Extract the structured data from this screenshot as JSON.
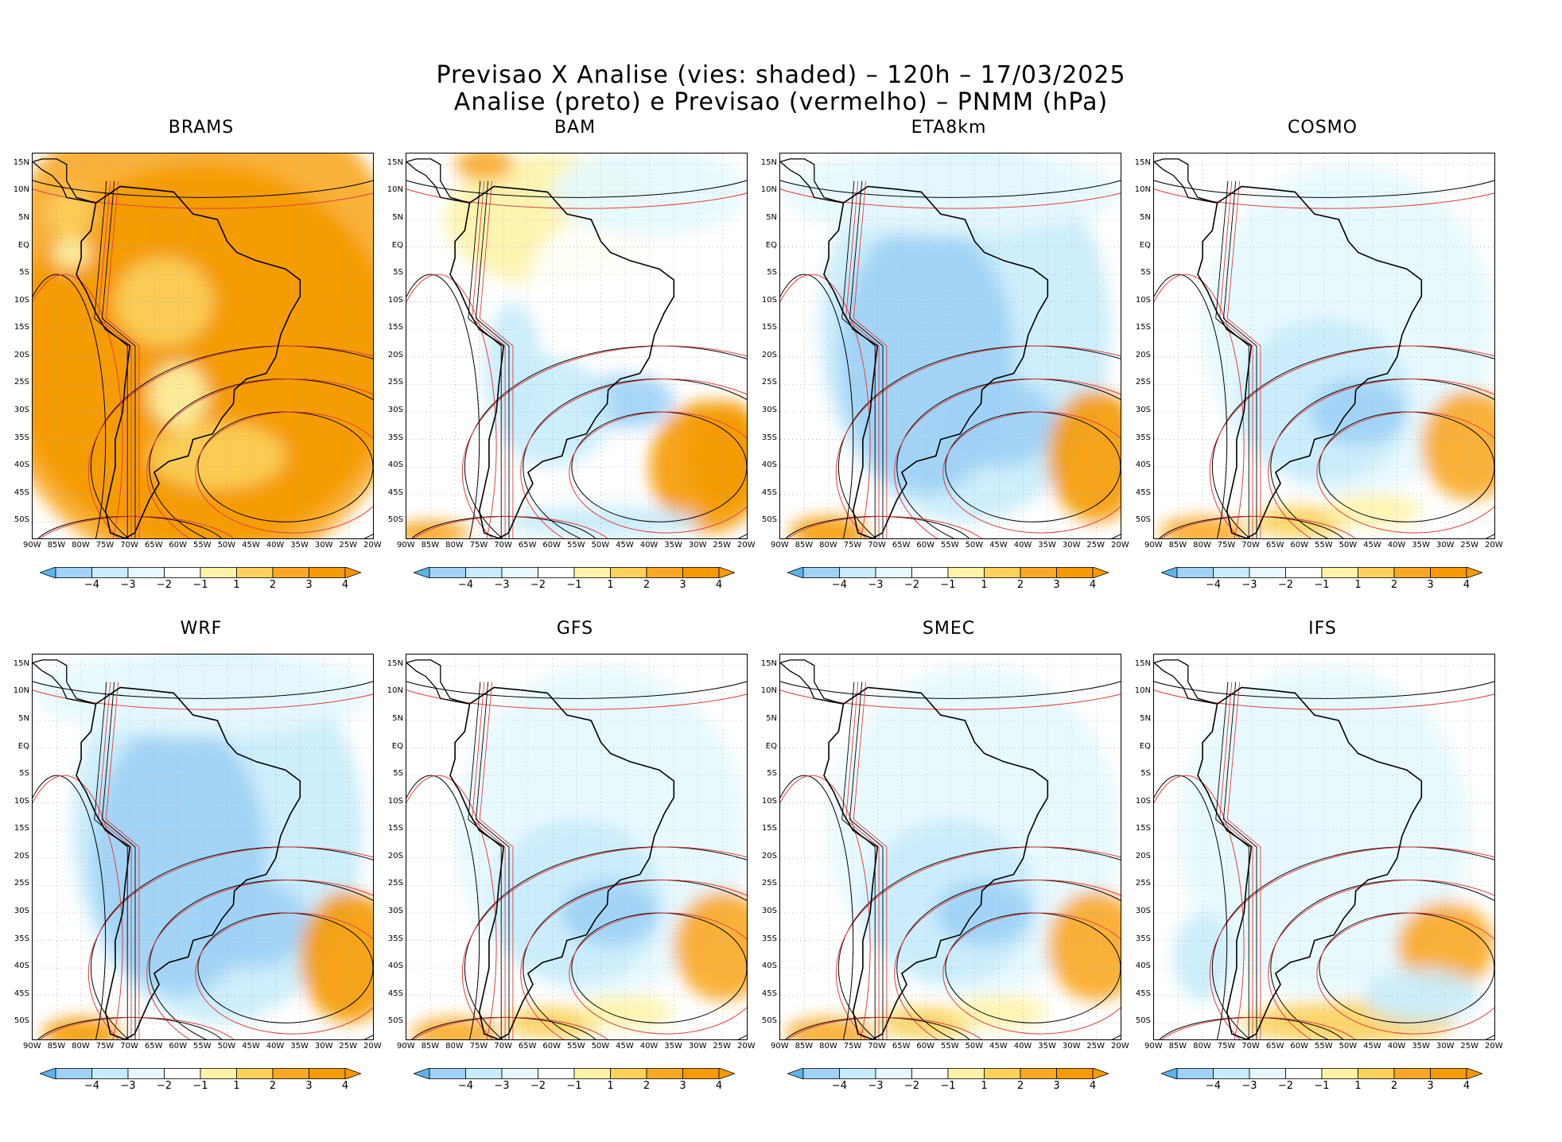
{
  "header": {
    "line1": "Previsao X Analise (vies: shaded) – 120h – 17/03/2025",
    "line2": "Analise (preto) e Previsao (vermelho) – PNMM (hPa)"
  },
  "axes": {
    "lat_labels": [
      "15N",
      "10N",
      "5N",
      "EQ",
      "5S",
      "10S",
      "15S",
      "20S",
      "25S",
      "30S",
      "35S",
      "40S",
      "45S",
      "50S"
    ],
    "lon_labels": [
      "90W",
      "85W",
      "80W",
      "75W",
      "70W",
      "65W",
      "60W",
      "55W",
      "50W",
      "45W",
      "40W",
      "35W",
      "30W",
      "25W",
      "20W"
    ]
  },
  "colorbar": {
    "labels": [
      "−4",
      "−3",
      "−2",
      "−1",
      "1",
      "2",
      "3",
      "4"
    ],
    "colors": [
      "#5fb3ea",
      "#9fd2f6",
      "#c8ecfb",
      "#e6f8fe",
      "#ffffff",
      "#fdf3a8",
      "#fcd25c",
      "#f9a825",
      "#f59a00"
    ]
  },
  "panels": [
    {
      "name": "BRAMS",
      "bias": "warm"
    },
    {
      "name": "BAM",
      "bias": "mixed"
    },
    {
      "name": "ETA8km",
      "bias": "cold"
    },
    {
      "name": "COSMO",
      "bias": "cold-light"
    },
    {
      "name": "WRF",
      "bias": "cold"
    },
    {
      "name": "GFS",
      "bias": "cold-light"
    },
    {
      "name": "SMEC",
      "bias": "cold-light"
    },
    {
      "name": "IFS",
      "bias": "neutral"
    }
  ]
}
